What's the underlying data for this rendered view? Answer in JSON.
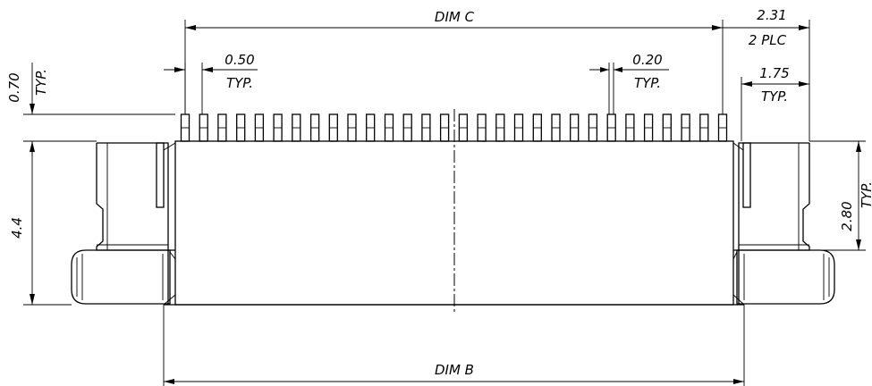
{
  "dimensions": {
    "dim_c": "DIM C",
    "dim_b": "DIM B",
    "pitch": "0.50",
    "pitch_note": "TYP.",
    "pin_width": "0.20",
    "pin_width_note": "TYP.",
    "end_offset": "2.31",
    "end_offset_note": "2 PLC",
    "latch_width": "1.75",
    "latch_width_note": "TYP.",
    "pin_height": "0.70",
    "pin_height_note": "TYP.",
    "body_height": "4.4",
    "latch_height": "2.80",
    "latch_height_note": "TYP."
  },
  "pin_count": 30
}
